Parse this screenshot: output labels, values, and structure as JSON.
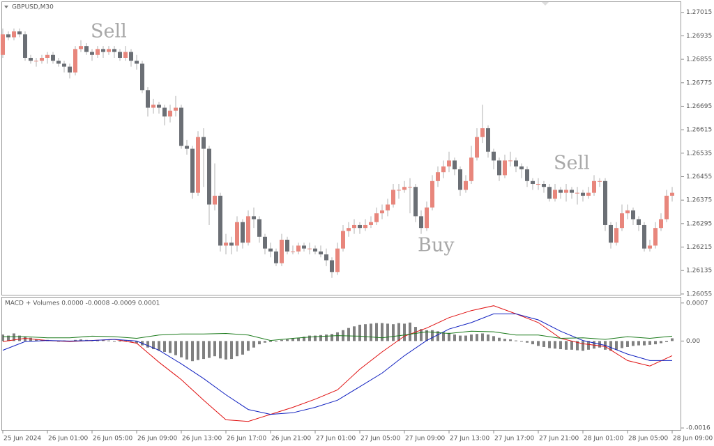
{
  "chart_data": [
    {
      "type": "candlestick",
      "title": "GBPUSD,M30",
      "annotations": [
        "Sell",
        "Buy",
        "Sell"
      ],
      "up_color": "#e8867c",
      "down_color": "#6b6f75",
      "ylim": [
        1.2605,
        1.2705
      ],
      "yticks": [
        1.27015,
        1.26935,
        1.26855,
        1.26775,
        1.26695,
        1.26615,
        1.26535,
        1.26455,
        1.26375,
        1.26295,
        1.26215,
        1.26135,
        1.26055
      ],
      "categories": [
        "25 Jun 2024",
        null,
        null,
        null,
        null,
        null,
        null,
        null,
        "26 Jun 01:00",
        null,
        null,
        null,
        null,
        null,
        null,
        null,
        "26 Jun 05:00",
        null,
        null,
        null,
        null,
        null,
        null,
        null,
        "26 Jun 09:00",
        null,
        null,
        null,
        null,
        null,
        null,
        null,
        "26 Jun 13:00",
        null,
        null,
        null,
        null,
        null,
        null,
        null,
        "26 Jun 17:00",
        null,
        null,
        null,
        null,
        null,
        null,
        null,
        "26 Jun 21:00",
        null,
        null,
        null,
        null,
        null,
        null,
        null,
        "27 Jun 01:00",
        null,
        null,
        null,
        null,
        null,
        null,
        null,
        "27 Jun 05:00",
        null,
        null,
        null,
        null,
        null,
        null,
        null,
        "27 Jun 09:00",
        null,
        null,
        null,
        null,
        null,
        null,
        null,
        "27 Jun 13:00",
        null,
        null,
        null,
        null,
        null,
        null,
        null,
        "27 Jun 17:00",
        null,
        null,
        null,
        null,
        null,
        null,
        null,
        "27 Jun 21:00",
        null,
        null,
        null,
        null,
        null,
        null,
        null,
        "28 Jun 01:00",
        null,
        null,
        null,
        null,
        null,
        null,
        null,
        "28 Jun 05:00",
        null,
        null,
        null,
        null,
        null,
        null,
        null,
        "28 Jun 09:00"
      ],
      "open": [
        1.2687,
        1.2694,
        1.2693,
        1.2695,
        1.2694,
        1.2686,
        1.2685,
        1.2685,
        1.2686,
        1.2687,
        1.2685,
        1.2684,
        1.2683,
        1.2681,
        1.2689,
        1.269,
        1.2688,
        1.2687,
        1.2689,
        1.2688,
        1.2689,
        1.2688,
        1.2686,
        1.2688,
        1.2685,
        1.2684,
        1.2675,
        1.2669,
        1.267,
        1.2669,
        1.2666,
        1.2668,
        1.2669,
        1.2656,
        1.2655,
        1.264,
        1.2659,
        1.2655,
        1.2636,
        1.2639,
        1.2622,
        1.2623,
        1.2622,
        1.263,
        1.2623,
        1.2632,
        1.2631,
        1.2625,
        1.2621,
        1.262,
        1.2616,
        1.2624,
        1.262,
        1.262,
        1.2622,
        1.2621,
        1.2621,
        1.262,
        1.2619,
        1.2617,
        1.2613,
        1.2621,
        1.2627,
        1.2628,
        1.2629,
        1.2628,
        1.2629,
        1.263,
        1.2633,
        1.2634,
        1.2636,
        1.2641,
        1.2641,
        1.2642,
        1.2642,
        1.2632,
        1.2628,
        1.2635,
        1.2644,
        1.2647,
        1.2649,
        1.2651,
        1.2648,
        1.2641,
        1.2644,
        1.2652,
        1.2659,
        1.2662,
        1.2654,
        1.2651,
        1.2646,
        1.2651,
        1.2651,
        1.2649,
        1.2648,
        1.2644,
        1.2643,
        1.2643,
        1.2642,
        1.2638,
        1.2641,
        1.264,
        1.2641,
        1.264,
        1.264,
        1.2639,
        1.264,
        1.2644,
        1.2644,
        1.2629,
        1.2623,
        1.2628,
        1.2633,
        1.2634,
        1.2631,
        1.2629,
        1.2621,
        1.2622,
        1.2628,
        1.2631,
        1.2639
      ],
      "high": [
        1.2696,
        1.2695,
        1.2696,
        1.2696,
        1.2695,
        1.2687,
        1.2686,
        1.2687,
        1.2688,
        1.2688,
        1.2686,
        1.2685,
        1.2684,
        1.269,
        1.2692,
        1.2691,
        1.2689,
        1.269,
        1.269,
        1.269,
        1.269,
        1.2689,
        1.269,
        1.2689,
        1.2687,
        1.2685,
        1.2676,
        1.2672,
        1.2671,
        1.267,
        1.267,
        1.2673,
        1.267,
        1.2658,
        1.2656,
        1.2661,
        1.2662,
        1.2656,
        1.265,
        1.264,
        1.2626,
        1.2625,
        1.2632,
        1.2631,
        1.2634,
        1.2635,
        1.2632,
        1.2626,
        1.2623,
        1.2621,
        1.2626,
        1.2625,
        1.2622,
        1.2623,
        1.2623,
        1.2623,
        1.2622,
        1.2622,
        1.2621,
        1.2618,
        1.2623,
        1.2629,
        1.263,
        1.2631,
        1.263,
        1.2631,
        1.2632,
        1.2635,
        1.2636,
        1.2638,
        1.2643,
        1.2643,
        1.2644,
        1.2645,
        1.2643,
        1.2634,
        1.2637,
        1.2646,
        1.2649,
        1.2651,
        1.2654,
        1.2652,
        1.2649,
        1.2646,
        1.2656,
        1.2662,
        1.267,
        1.2663,
        1.2655,
        1.2652,
        1.2653,
        1.2654,
        1.2652,
        1.265,
        1.2649,
        1.2645,
        1.2645,
        1.2644,
        1.2643,
        1.2643,
        1.2642,
        1.2643,
        1.2642,
        1.2642,
        1.2641,
        1.2642,
        1.2646,
        1.2645,
        1.2645,
        1.263,
        1.263,
        1.2636,
        1.2636,
        1.2635,
        1.2632,
        1.263,
        1.2624,
        1.263,
        1.2633,
        1.2641,
        1.2642
      ],
      "low": [
        1.2686,
        1.2692,
        1.2692,
        1.2693,
        1.2685,
        1.2684,
        1.2683,
        1.2684,
        1.2684,
        1.2684,
        1.2683,
        1.2681,
        1.2679,
        1.268,
        1.2688,
        1.2687,
        1.2685,
        1.2686,
        1.2686,
        1.2687,
        1.2686,
        1.2685,
        1.2685,
        1.2683,
        1.2682,
        1.2674,
        1.2666,
        1.2667,
        1.2667,
        1.2663,
        1.2664,
        1.2666,
        1.2655,
        1.2653,
        1.2638,
        1.2639,
        1.2642,
        1.2629,
        1.2634,
        1.262,
        1.2619,
        1.2619,
        1.262,
        1.2621,
        1.2622,
        1.2628,
        1.2623,
        1.2619,
        1.2618,
        1.2615,
        1.2615,
        1.2619,
        1.2619,
        1.2619,
        1.262,
        1.2619,
        1.2619,
        1.2618,
        1.2615,
        1.2611,
        1.2612,
        1.262,
        1.2625,
        1.2626,
        1.2626,
        1.2627,
        1.2628,
        1.2629,
        1.2631,
        1.2632,
        1.2635,
        1.2638,
        1.264,
        1.2633,
        1.263,
        1.2626,
        1.2627,
        1.2634,
        1.2642,
        1.2645,
        1.2647,
        1.2646,
        1.2639,
        1.264,
        1.2643,
        1.2651,
        1.2657,
        1.2652,
        1.2648,
        1.2644,
        1.2645,
        1.2649,
        1.2647,
        1.2645,
        1.2642,
        1.2641,
        1.2641,
        1.264,
        1.2637,
        1.2637,
        1.2638,
        1.2637,
        1.2638,
        1.2636,
        1.2637,
        1.2638,
        1.2639,
        1.2642,
        1.2627,
        1.2621,
        1.2622,
        1.2627,
        1.2631,
        1.2629,
        1.2627,
        1.262,
        1.262,
        1.2621,
        1.2627,
        1.263,
        1.2637
      ],
      "close": [
        1.2694,
        1.2693,
        1.2695,
        1.2694,
        1.2686,
        1.2685,
        1.2685,
        1.2686,
        1.2687,
        1.2685,
        1.2684,
        1.2683,
        1.2681,
        1.2689,
        1.269,
        1.2688,
        1.2687,
        1.2689,
        1.2688,
        1.2689,
        1.2688,
        1.2686,
        1.2688,
        1.2685,
        1.2684,
        1.2675,
        1.2669,
        1.267,
        1.2669,
        1.2666,
        1.2668,
        1.2669,
        1.2656,
        1.2655,
        1.264,
        1.2659,
        1.2655,
        1.2636,
        1.2639,
        1.2622,
        1.2623,
        1.2622,
        1.263,
        1.2623,
        1.2632,
        1.2631,
        1.2625,
        1.2621,
        1.262,
        1.2616,
        1.2624,
        1.262,
        1.262,
        1.2622,
        1.2621,
        1.2621,
        1.262,
        1.2619,
        1.2617,
        1.2613,
        1.2621,
        1.2627,
        1.2628,
        1.2629,
        1.2628,
        1.2629,
        1.263,
        1.2633,
        1.2634,
        1.2636,
        1.2641,
        1.2641,
        1.2642,
        1.2642,
        1.2632,
        1.2628,
        1.2635,
        1.2644,
        1.2647,
        1.2649,
        1.2651,
        1.2648,
        1.2641,
        1.2644,
        1.2652,
        1.2659,
        1.2662,
        1.2654,
        1.2651,
        1.2646,
        1.2651,
        1.2651,
        1.2649,
        1.2648,
        1.2644,
        1.2643,
        1.2643,
        1.2642,
        1.2638,
        1.2641,
        1.264,
        1.2641,
        1.264,
        1.264,
        1.2639,
        1.264,
        1.2644,
        1.2644,
        1.2629,
        1.2623,
        1.2628,
        1.2633,
        1.2634,
        1.2631,
        1.2629,
        1.2621,
        1.2622,
        1.2628,
        1.2631,
        1.2639,
        1.264
      ]
    },
    {
      "type": "macd",
      "title": "MACD + Volumes 0.0000 -0.0008 -0.0009 0.0001",
      "ylim": [
        -0.00165,
        0.0008
      ],
      "yticks": [
        0.0007,
        {
          "value": 0,
          "label": "0.00"
        },
        -0.0016
      ],
      "histogram": {
        "color": "#808080",
        "values": [
          0.00012,
          0.0001,
          0.00014,
          0.0001,
          8e-05,
          6e-05,
          3e-05,
          2e-05,
          2e-05,
          1e-05,
          0,
          1e-05,
          -1e-05,
          2e-05,
          3e-05,
          2e-05,
          1e-05,
          1e-05,
          2e-05,
          1e-05,
          0,
          -1e-05,
          1e-05,
          0,
          -4e-05,
          -8e-05,
          -0.00012,
          -0.00015,
          -0.00018,
          -0.0002,
          -0.00022,
          -0.00026,
          -0.0003,
          -0.00034,
          -0.00037,
          -0.00035,
          -0.00033,
          -0.00031,
          -0.00028,
          -0.00032,
          -0.00034,
          -0.00033,
          -0.00028,
          -0.00025,
          -0.00018,
          -0.00012,
          -6e-05,
          -3e-05,
          -2e-05,
          -1e-05,
          2e-05,
          3e-05,
          5e-05,
          6e-05,
          8e-05,
          0.0001,
          0.0001,
          0.00011,
          0.00012,
          0.00013,
          0.00016,
          0.0002,
          0.00024,
          0.00027,
          0.0003,
          0.00031,
          0.00032,
          0.00033,
          0.00033,
          0.00032,
          0.00031,
          0.00033,
          0.00032,
          0.00034,
          0.00026,
          0.00022,
          0.0002,
          0.0002,
          0.00018,
          0.00016,
          0.00015,
          0.00012,
          0.0001,
          0.0001,
          0.00012,
          0.00013,
          0.00014,
          0.00012,
          9e-05,
          6e-05,
          4e-05,
          3e-05,
          1e-05,
          -1e-05,
          -3e-05,
          -6e-05,
          -9e-05,
          -0.00011,
          -0.00013,
          -0.00014,
          -0.00015,
          -0.00016,
          -0.00016,
          -0.00017,
          -0.00018,
          -0.00016,
          -0.00014,
          -0.00012,
          -0.00016,
          -0.00018,
          -0.00016,
          -0.00013,
          -0.00011,
          -9e-05,
          -8e-05,
          -8e-05,
          -7e-05,
          -6e-05,
          -4e-05,
          -2e-05,
          5e-05
        ]
      },
      "series": [
        {
          "color": "#e01010",
          "values": [
            -1e-05,
            5e-05,
            1e-05,
            -1e-05,
            1e-05,
            3e-05,
            -4e-05,
            -0.00039,
            -0.00071,
            -0.00109,
            -0.00145,
            -0.00148,
            -0.00135,
            -0.00122,
            -0.00107,
            -0.0009,
            -0.00052,
            -0.0002,
            9e-05,
            0.00024,
            0.00043,
            0.00056,
            0.00065,
            0.0005,
            0.00034,
            5e-05,
            -5e-05,
            -0.0001,
            -0.00036,
            -0.00046,
            -0.00027
          ]
        },
        {
          "color": "#1020c0",
          "values": [
            -0.00017,
            -1e-05,
            1e-05,
            0,
            1e-05,
            3e-05,
            0,
            -0.00017,
            -0.00042,
            -0.00069,
            -0.00099,
            -0.00126,
            -0.00135,
            -0.00132,
            -0.00122,
            -0.00109,
            -0.00084,
            -0.00059,
            -0.00027,
            1e-05,
            0.00022,
            0.00034,
            0.0005,
            0.0005,
            0.00039,
            0.00018,
            1e-05,
            -8e-05,
            -0.00024,
            -0.00036,
            -0.00036
          ]
        },
        {
          "color": "#1a7a1a",
          "values": [
            8e-05,
            8e-05,
            6e-05,
            6e-05,
            9e-05,
            8e-05,
            5e-05,
            0.00011,
            0.00013,
            0.00013,
            0.00014,
            0.00011,
            1e-05,
            5e-05,
            8e-05,
            0.0001,
            9e-05,
            6e-05,
            0.00011,
            0.00017,
            0.00014,
            0.00018,
            0.00017,
            0.00011,
            0.00011,
            5e-05,
            6e-05,
            3e-05,
            8e-05,
            5e-05,
            9e-05
          ]
        }
      ]
    }
  ]
}
